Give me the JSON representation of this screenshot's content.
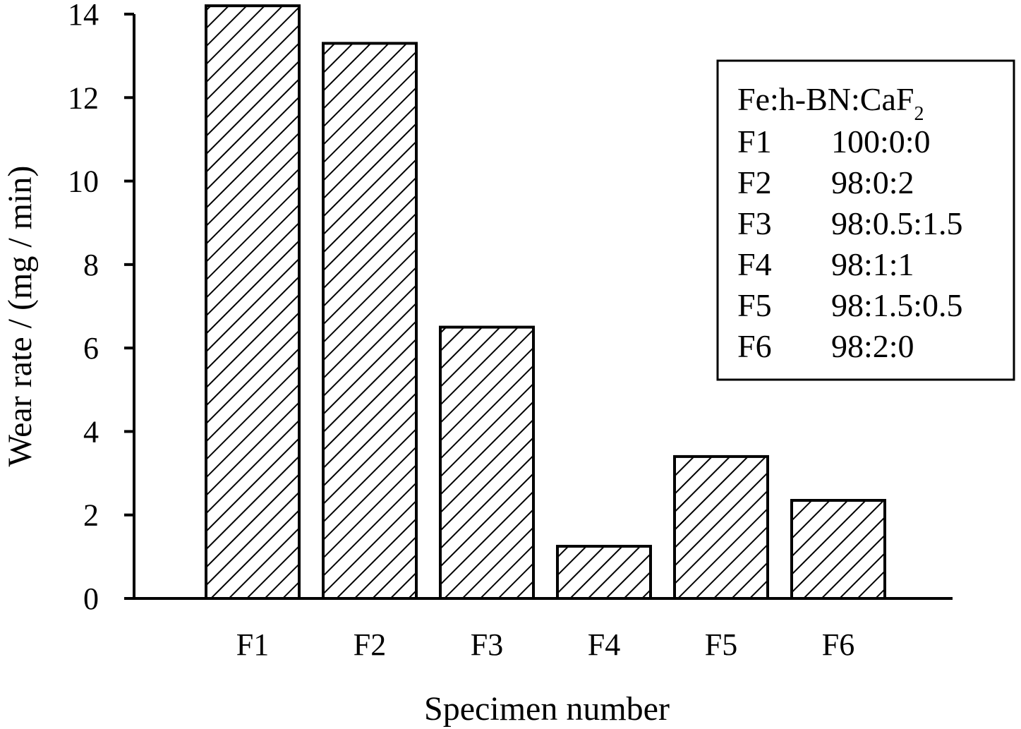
{
  "chart_data": {
    "type": "bar",
    "title": "",
    "xlabel": "Specimen number",
    "ylabel": "Wear rate / (mg / min)",
    "categories": [
      "F1",
      "F2",
      "F3",
      "F4",
      "F5",
      "F6"
    ],
    "values": [
      14.2,
      13.3,
      6.5,
      1.25,
      3.4,
      2.35
    ],
    "ylim": [
      0,
      14
    ],
    "yticks": [
      "0",
      "2",
      "4",
      "6",
      "8",
      "10",
      "12",
      "14"
    ],
    "grid": false,
    "bar_fill": "diagonal-hatch",
    "colors": {
      "bar_stroke": "#000000",
      "hatch": "#000000",
      "background": "#ffffff"
    },
    "legend": {
      "placement": "top-right",
      "header_main": "Fe:h-BN:CaF",
      "header_sub": "2",
      "rows": [
        {
          "label": "F1",
          "ratio": "100:0:0"
        },
        {
          "label": "F2",
          "ratio": "98:0:2"
        },
        {
          "label": "F3",
          "ratio": "98:0.5:1.5"
        },
        {
          "label": "F4",
          "ratio": "98:1:1"
        },
        {
          "label": "F5",
          "ratio": "98:1.5:0.5"
        },
        {
          "label": "F6",
          "ratio": "98:2:0"
        }
      ]
    }
  }
}
